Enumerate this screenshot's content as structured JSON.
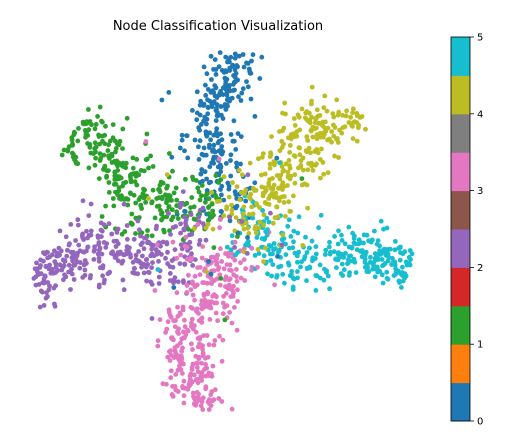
{
  "chart_data": {
    "type": "scatter",
    "title": "Node Classification Visualization",
    "axes_visible": false,
    "colorbar": {
      "range": [
        0,
        5
      ],
      "ticks": [
        "0",
        "1",
        "2",
        "3",
        "4",
        "5"
      ],
      "colormap": "tab10",
      "segments": 10
    },
    "classes": [
      {
        "id": 0,
        "color": "#1f77b4",
        "region": "upper-center arm"
      },
      {
        "id": 2,
        "color": "#2ca02c",
        "region": "upper-left arm"
      },
      {
        "id": 2.5,
        "color": "#9467bd",
        "region": "left arm"
      },
      {
        "id": 3,
        "color": "#e377c2",
        "region": "bottom arm"
      },
      {
        "id": 4.5,
        "color": "#17becf",
        "region": "right arm"
      },
      {
        "id": 4,
        "color": "#bcbd22",
        "region": "upper-right arm"
      }
    ],
    "colorbar_colors": [
      "#1f77b4",
      "#ff7f0e",
      "#2ca02c",
      "#d62728",
      "#9467bd",
      "#8c564b",
      "#e377c2",
      "#7f7f7f",
      "#bcbd22",
      "#17becf"
    ]
  }
}
